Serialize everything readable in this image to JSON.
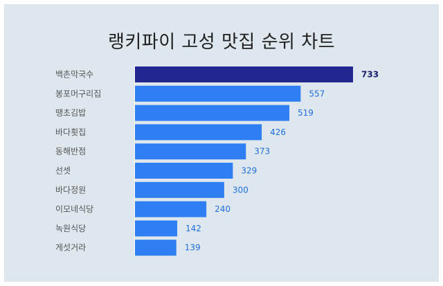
{
  "chart_data": {
    "type": "bar",
    "orientation": "horizontal",
    "title": "랭키파이 고성 맛집 순위 차트",
    "categories": [
      "백촌막국수",
      "봉포머구리집",
      "땡초김밥",
      "바다횟집",
      "동해반점",
      "선셋",
      "바다정원",
      "이모네식당",
      "녹원식당",
      "게섯거라"
    ],
    "values": [
      733,
      557,
      519,
      426,
      373,
      329,
      300,
      240,
      142,
      139
    ],
    "xlim": [
      0,
      733
    ],
    "grid": false,
    "legend": "none",
    "colors": {
      "highlight_bar": "#22278f",
      "bar": "#2f7ff2",
      "highlight_label": "#1a1e6e",
      "label": "#1f6fe0"
    }
  }
}
